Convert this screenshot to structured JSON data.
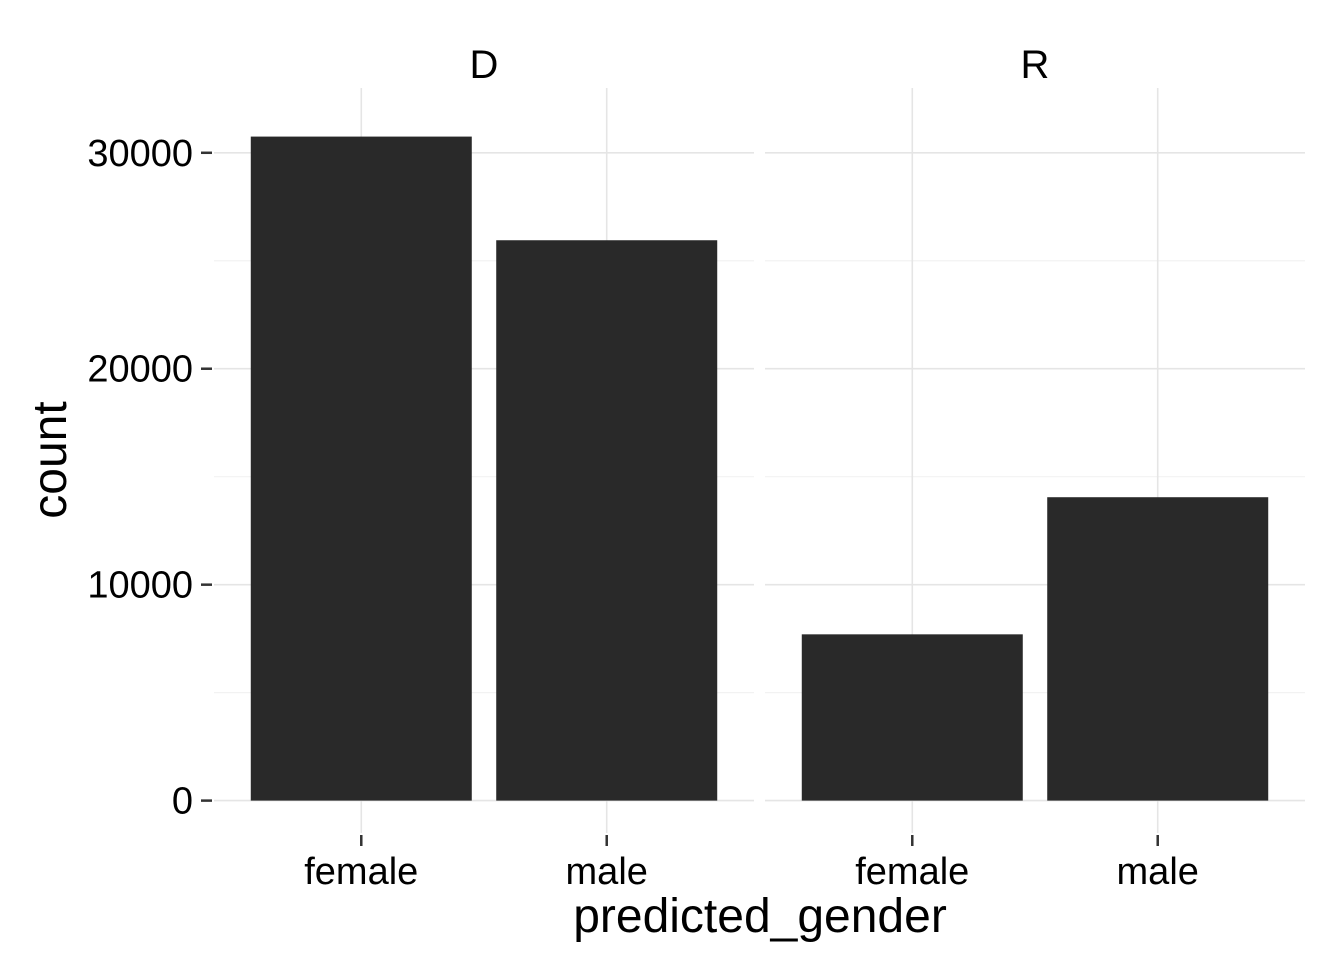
{
  "chart_data": {
    "type": "bar",
    "facets": [
      {
        "label": "D",
        "categories": [
          "female",
          "male"
        ],
        "values": [
          30750,
          25950
        ]
      },
      {
        "label": "R",
        "categories": [
          "female",
          "male"
        ],
        "values": [
          7700,
          14050
        ]
      }
    ],
    "xlabel": "predicted_gender",
    "ylabel": "count",
    "ylim": [
      -1500,
      33000
    ],
    "yticks": [
      0,
      10000,
      20000,
      30000
    ],
    "ytick_labels": [
      "0",
      "10000",
      "20000",
      "30000"
    ],
    "grid": true,
    "legend": "none",
    "bar_color": "#292929"
  }
}
